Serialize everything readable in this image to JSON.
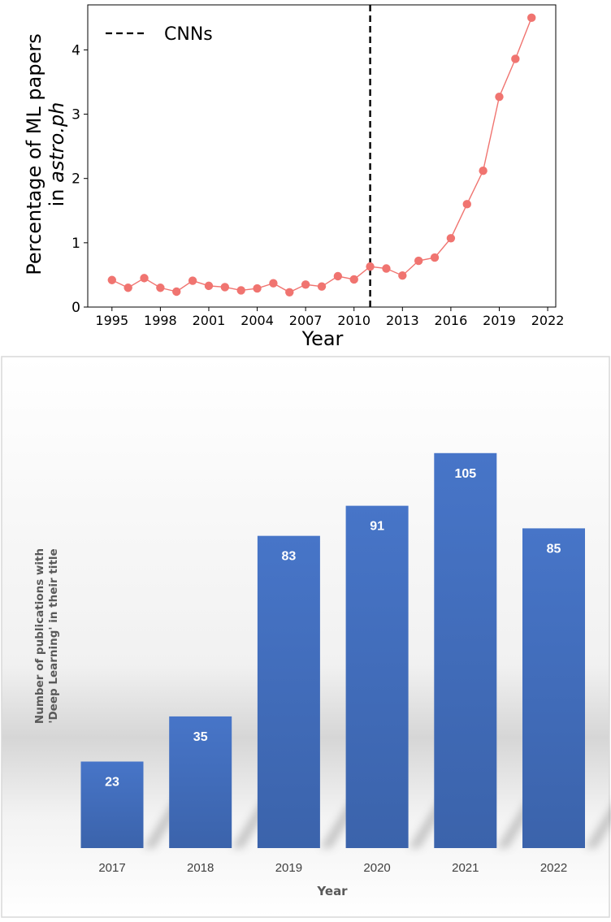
{
  "chart_data": [
    {
      "type": "line",
      "xlabel": "Year",
      "ylabel_prefix": "Percentage of ML papers",
      "ylabel_line2_prefix": "in ",
      "ylabel_line2_italic": "astro.ph",
      "xlim": [
        1993.5,
        2022.5
      ],
      "ylim": [
        0,
        4.7
      ],
      "xticks": [
        1995,
        1998,
        2001,
        2004,
        2007,
        2010,
        2013,
        2016,
        2019,
        2022
      ],
      "yticks": [
        0,
        1,
        2,
        3,
        4
      ],
      "line_color": "#f07470",
      "vline": {
        "x": 2011,
        "label": "CNNs",
        "style": "dashed",
        "color": "#000000"
      },
      "legend_position": "top-left",
      "x": [
        1995,
        1996,
        1997,
        1998,
        1999,
        2000,
        2001,
        2002,
        2003,
        2004,
        2005,
        2006,
        2007,
        2008,
        2009,
        2010,
        2011,
        2012,
        2013,
        2014,
        2015,
        2016,
        2017,
        2018,
        2019,
        2020,
        2021
      ],
      "y": [
        0.42,
        0.3,
        0.45,
        0.3,
        0.24,
        0.41,
        0.33,
        0.31,
        0.26,
        0.29,
        0.37,
        0.23,
        0.35,
        0.32,
        0.48,
        0.43,
        0.63,
        0.6,
        0.49,
        0.72,
        0.77,
        1.07,
        1.6,
        2.12,
        3.27,
        3.86,
        4.5
      ]
    },
    {
      "type": "bar",
      "xlabel": "Year",
      "ylabel_line1": "Number of publications  with",
      "ylabel_line2": "'Deep Learning' in their title",
      "categories": [
        "2017",
        "2018",
        "2019",
        "2020",
        "2021",
        "2022"
      ],
      "values": [
        23,
        35,
        83,
        91,
        105,
        85
      ],
      "ylim": [
        0,
        111
      ],
      "bar_color": "#4472c4",
      "grid": false
    }
  ]
}
